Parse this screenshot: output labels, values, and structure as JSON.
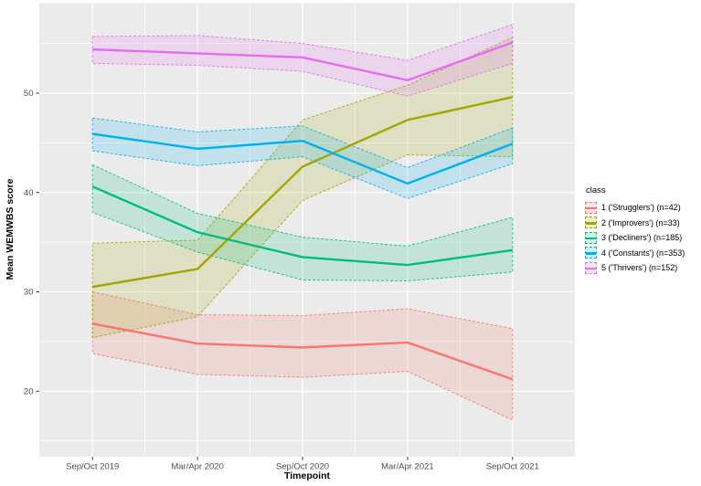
{
  "chart_data": {
    "type": "line",
    "title": "",
    "xlabel": "Timepoint",
    "ylabel": "Mean WEMWBS score",
    "legend_title": "class",
    "legend_position": "right",
    "grid": "on",
    "panel_bg": "#EBEBEB",
    "grid_color": "#FFFFFF",
    "tick_label_color": "#4D4D4D",
    "categories": [
      "Sep/Oct 2019",
      "Mar/Apr 2020",
      "Sep/Oct 2020",
      "Mar/Apr 2021",
      "Sep/Oct 2021"
    ],
    "y_ticks": [
      20,
      30,
      40,
      50
    ],
    "y_minor_ticks": [
      15,
      25,
      35,
      45,
      55
    ],
    "ylim": [
      13.4,
      59.1
    ],
    "series": [
      {
        "name": "1 ('Strugglers') (n=42)",
        "color": "#F8766D",
        "mean": [
          26.8,
          24.8,
          24.4,
          24.9,
          21.2
        ],
        "lower": [
          23.8,
          21.7,
          21.4,
          22.0,
          17.1
        ],
        "upper": [
          30.0,
          27.7,
          27.6,
          28.3,
          26.3
        ]
      },
      {
        "name": "2 ('Improvers') (n=33)",
        "color": "#A3A500",
        "mean": [
          30.5,
          32.3,
          42.6,
          47.3,
          49.6
        ],
        "lower": [
          25.4,
          27.5,
          39.2,
          43.8,
          43.6
        ],
        "upper": [
          34.9,
          35.2,
          47.3,
          50.8,
          55.6
        ]
      },
      {
        "name": "3 ('Decliners') (n=185)",
        "color": "#00BF7D",
        "mean": [
          40.6,
          36.0,
          33.5,
          32.7,
          34.2
        ],
        "lower": [
          38.0,
          34.0,
          31.2,
          31.1,
          32.0
        ],
        "upper": [
          42.8,
          37.9,
          35.5,
          34.6,
          37.5
        ]
      },
      {
        "name": "4 ('Constants') (n=353)",
        "color": "#00B0F6",
        "mean": [
          45.9,
          44.4,
          45.2,
          40.9,
          44.9
        ],
        "lower": [
          44.2,
          42.7,
          43.6,
          39.4,
          42.9
        ],
        "upper": [
          47.5,
          46.1,
          46.7,
          42.5,
          46.5
        ]
      },
      {
        "name": "5 ('Thrivers') (n=152)",
        "color": "#E76BF3",
        "mean": [
          54.4,
          54.0,
          53.6,
          51.3,
          55.1
        ],
        "lower": [
          53.0,
          52.8,
          52.2,
          49.7,
          53.0
        ],
        "upper": [
          55.7,
          55.8,
          55.0,
          53.3,
          56.9
        ]
      }
    ]
  }
}
